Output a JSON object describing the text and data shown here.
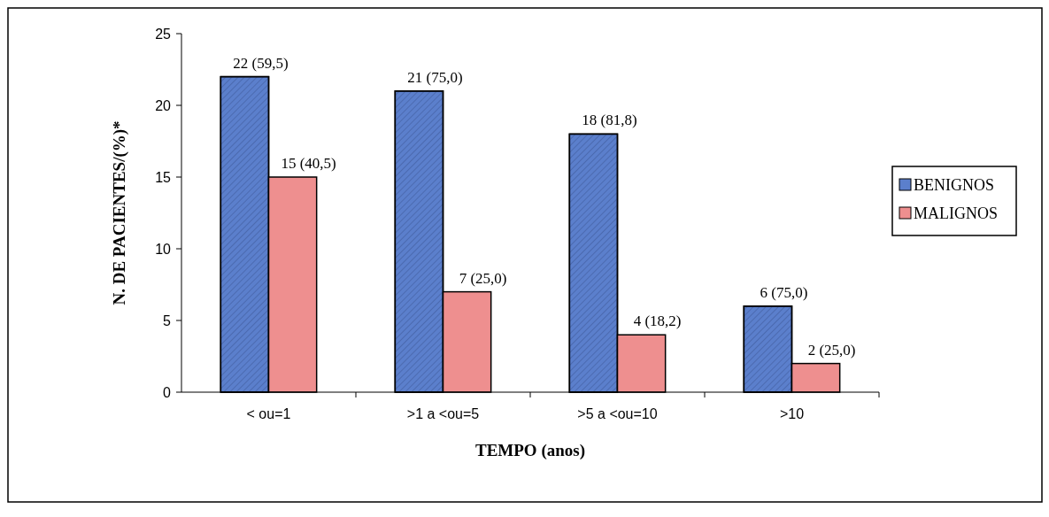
{
  "chart_data": {
    "type": "bar",
    "xlabel": "TEMPO (anos)",
    "ylabel": "N. DE PACIENTES/(%)*",
    "categories": [
      "< ou=1",
      ">1 a <ou=5",
      ">5 a <ou=10",
      ">10"
    ],
    "series": [
      {
        "name": "BENIGNOS",
        "color": "#5b7fcc",
        "values": [
          22,
          21,
          18,
          6
        ],
        "value_labels": [
          "22 (59,5)",
          "21 (75,0)",
          "18 (81,8)",
          "6 (75,0)"
        ]
      },
      {
        "name": "MALIGNOS",
        "color": "#ee8f8f",
        "values": [
          15,
          7,
          4,
          2
        ],
        "value_labels": [
          "15 (40,5)",
          "7 (25,0)",
          "4 (18,2)",
          "2 (25,0)"
        ]
      }
    ],
    "ylim": [
      0,
      25
    ],
    "yticks": [
      0,
      5,
      10,
      15,
      20,
      25
    ],
    "legend": "right"
  }
}
